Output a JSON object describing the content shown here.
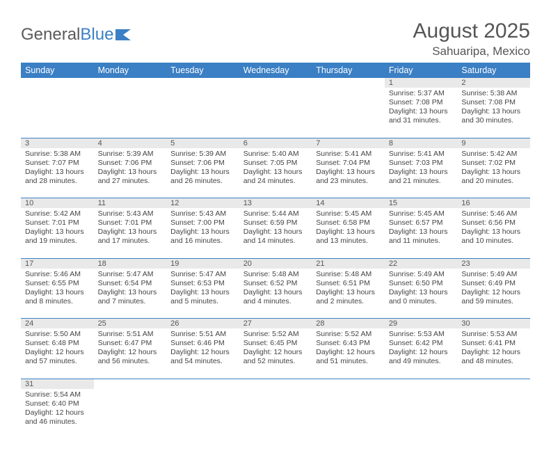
{
  "logo": {
    "part1": "General",
    "part2": "Blue"
  },
  "title": "August 2025",
  "location": "Sahuaripa, Mexico",
  "dayHeaders": [
    "Sunday",
    "Monday",
    "Tuesday",
    "Wednesday",
    "Thursday",
    "Friday",
    "Saturday"
  ],
  "colors": {
    "headerBg": "#3b7fc4",
    "dayNumBg": "#e9e9e9",
    "text": "#444"
  },
  "weeks": [
    [
      null,
      null,
      null,
      null,
      null,
      {
        "n": "1",
        "sr": "5:37 AM",
        "ss": "7:08 PM",
        "dl": "13 hours and 31 minutes."
      },
      {
        "n": "2",
        "sr": "5:38 AM",
        "ss": "7:08 PM",
        "dl": "13 hours and 30 minutes."
      }
    ],
    [
      {
        "n": "3",
        "sr": "5:38 AM",
        "ss": "7:07 PM",
        "dl": "13 hours and 28 minutes."
      },
      {
        "n": "4",
        "sr": "5:39 AM",
        "ss": "7:06 PM",
        "dl": "13 hours and 27 minutes."
      },
      {
        "n": "5",
        "sr": "5:39 AM",
        "ss": "7:06 PM",
        "dl": "13 hours and 26 minutes."
      },
      {
        "n": "6",
        "sr": "5:40 AM",
        "ss": "7:05 PM",
        "dl": "13 hours and 24 minutes."
      },
      {
        "n": "7",
        "sr": "5:41 AM",
        "ss": "7:04 PM",
        "dl": "13 hours and 23 minutes."
      },
      {
        "n": "8",
        "sr": "5:41 AM",
        "ss": "7:03 PM",
        "dl": "13 hours and 21 minutes."
      },
      {
        "n": "9",
        "sr": "5:42 AM",
        "ss": "7:02 PM",
        "dl": "13 hours and 20 minutes."
      }
    ],
    [
      {
        "n": "10",
        "sr": "5:42 AM",
        "ss": "7:01 PM",
        "dl": "13 hours and 19 minutes."
      },
      {
        "n": "11",
        "sr": "5:43 AM",
        "ss": "7:01 PM",
        "dl": "13 hours and 17 minutes."
      },
      {
        "n": "12",
        "sr": "5:43 AM",
        "ss": "7:00 PM",
        "dl": "13 hours and 16 minutes."
      },
      {
        "n": "13",
        "sr": "5:44 AM",
        "ss": "6:59 PM",
        "dl": "13 hours and 14 minutes."
      },
      {
        "n": "14",
        "sr": "5:45 AM",
        "ss": "6:58 PM",
        "dl": "13 hours and 13 minutes."
      },
      {
        "n": "15",
        "sr": "5:45 AM",
        "ss": "6:57 PM",
        "dl": "13 hours and 11 minutes."
      },
      {
        "n": "16",
        "sr": "5:46 AM",
        "ss": "6:56 PM",
        "dl": "13 hours and 10 minutes."
      }
    ],
    [
      {
        "n": "17",
        "sr": "5:46 AM",
        "ss": "6:55 PM",
        "dl": "13 hours and 8 minutes."
      },
      {
        "n": "18",
        "sr": "5:47 AM",
        "ss": "6:54 PM",
        "dl": "13 hours and 7 minutes."
      },
      {
        "n": "19",
        "sr": "5:47 AM",
        "ss": "6:53 PM",
        "dl": "13 hours and 5 minutes."
      },
      {
        "n": "20",
        "sr": "5:48 AM",
        "ss": "6:52 PM",
        "dl": "13 hours and 4 minutes."
      },
      {
        "n": "21",
        "sr": "5:48 AM",
        "ss": "6:51 PM",
        "dl": "13 hours and 2 minutes."
      },
      {
        "n": "22",
        "sr": "5:49 AM",
        "ss": "6:50 PM",
        "dl": "13 hours and 0 minutes."
      },
      {
        "n": "23",
        "sr": "5:49 AM",
        "ss": "6:49 PM",
        "dl": "12 hours and 59 minutes."
      }
    ],
    [
      {
        "n": "24",
        "sr": "5:50 AM",
        "ss": "6:48 PM",
        "dl": "12 hours and 57 minutes."
      },
      {
        "n": "25",
        "sr": "5:51 AM",
        "ss": "6:47 PM",
        "dl": "12 hours and 56 minutes."
      },
      {
        "n": "26",
        "sr": "5:51 AM",
        "ss": "6:46 PM",
        "dl": "12 hours and 54 minutes."
      },
      {
        "n": "27",
        "sr": "5:52 AM",
        "ss": "6:45 PM",
        "dl": "12 hours and 52 minutes."
      },
      {
        "n": "28",
        "sr": "5:52 AM",
        "ss": "6:43 PM",
        "dl": "12 hours and 51 minutes."
      },
      {
        "n": "29",
        "sr": "5:53 AM",
        "ss": "6:42 PM",
        "dl": "12 hours and 49 minutes."
      },
      {
        "n": "30",
        "sr": "5:53 AM",
        "ss": "6:41 PM",
        "dl": "12 hours and 48 minutes."
      }
    ],
    [
      {
        "n": "31",
        "sr": "5:54 AM",
        "ss": "6:40 PM",
        "dl": "12 hours and 46 minutes."
      },
      null,
      null,
      null,
      null,
      null,
      null
    ]
  ],
  "labels": {
    "sunrise": "Sunrise: ",
    "sunset": "Sunset: ",
    "daylight": "Daylight: "
  }
}
